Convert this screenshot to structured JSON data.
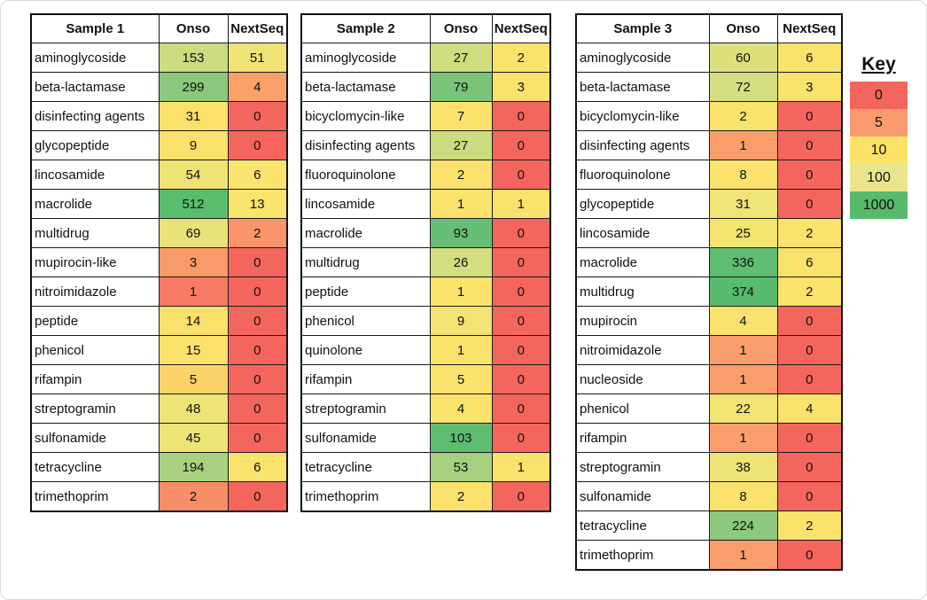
{
  "key": {
    "title": "Key",
    "stops": [
      {
        "label": "0",
        "color": "#F4655D"
      },
      {
        "label": "5",
        "color": "#F99B6C"
      },
      {
        "label": "10",
        "color": "#FBE166"
      },
      {
        "label": "100",
        "color": "#EAE58C"
      },
      {
        "label": "1000",
        "color": "#57BB6B"
      }
    ]
  },
  "chart_data": [
    {
      "type": "heatmap",
      "title": "Sample 1",
      "columns": [
        "Onso",
        "NextSeq"
      ],
      "rows": [
        {
          "label": "aminoglycoside",
          "values": [
            153,
            51
          ],
          "colors": [
            "#CBDB80",
            "#F0E273"
          ]
        },
        {
          "label": "beta-lactamase",
          "values": [
            299,
            4
          ],
          "colors": [
            "#8BC87D",
            "#F9A169"
          ]
        },
        {
          "label": "disinfecting agents",
          "values": [
            31,
            0
          ],
          "colors": [
            "#FBE16B",
            "#F4655D"
          ]
        },
        {
          "label": "glycopeptide",
          "values": [
            9,
            0
          ],
          "colors": [
            "#FBE16B",
            "#F4655D"
          ]
        },
        {
          "label": "lincosamide",
          "values": [
            54,
            6
          ],
          "colors": [
            "#EFE373",
            "#FAE46E"
          ]
        },
        {
          "label": "macrolide",
          "values": [
            512,
            13
          ],
          "colors": [
            "#5ABD6E",
            "#FAE46E"
          ]
        },
        {
          "label": "multidrug",
          "values": [
            69,
            2
          ],
          "colors": [
            "#EAE279",
            "#F9946B"
          ]
        },
        {
          "label": "mupirocin-like",
          "values": [
            3,
            0
          ],
          "colors": [
            "#F99B68",
            "#F4655D"
          ]
        },
        {
          "label": "nitroimidazole",
          "values": [
            1,
            0
          ],
          "colors": [
            "#F77A66",
            "#F4655D"
          ]
        },
        {
          "label": "peptide",
          "values": [
            14,
            0
          ],
          "colors": [
            "#FBE16B",
            "#F4655D"
          ]
        },
        {
          "label": "phenicol",
          "values": [
            15,
            0
          ],
          "colors": [
            "#FBE16B",
            "#F4655D"
          ]
        },
        {
          "label": "rifampin",
          "values": [
            5,
            0
          ],
          "colors": [
            "#FBD469",
            "#F4655D"
          ]
        },
        {
          "label": "streptogramin",
          "values": [
            48,
            0
          ],
          "colors": [
            "#EDE377",
            "#F4655D"
          ]
        },
        {
          "label": "sulfonamide",
          "values": [
            45,
            0
          ],
          "colors": [
            "#EDE377",
            "#F4655D"
          ]
        },
        {
          "label": "tetracycline",
          "values": [
            194,
            6
          ],
          "colors": [
            "#A8D17F",
            "#FAE46E"
          ]
        },
        {
          "label": "trimethoprim",
          "values": [
            2,
            0
          ],
          "colors": [
            "#F88E68",
            "#F4655D"
          ]
        }
      ]
    },
    {
      "type": "heatmap",
      "title": "Sample 2",
      "columns": [
        "Onso",
        "NextSeq"
      ],
      "rows": [
        {
          "label": "aminoglycoside",
          "values": [
            27,
            2
          ],
          "colors": [
            "#D0DD7F",
            "#FAE26C"
          ]
        },
        {
          "label": "beta-lactamase",
          "values": [
            79,
            3
          ],
          "colors": [
            "#7AC47A",
            "#FAE26C"
          ]
        },
        {
          "label": "bicyclomycin-like",
          "values": [
            7,
            0
          ],
          "colors": [
            "#FAE26C",
            "#F4655D"
          ]
        },
        {
          "label": "disinfecting agents",
          "values": [
            27,
            0
          ],
          "colors": [
            "#CCDC80",
            "#F4655D"
          ]
        },
        {
          "label": "fluoroquinolone",
          "values": [
            2,
            0
          ],
          "colors": [
            "#FAE26C",
            "#F4655D"
          ]
        },
        {
          "label": "lincosamide",
          "values": [
            1,
            1
          ],
          "colors": [
            "#FAE26C",
            "#FAE26C"
          ]
        },
        {
          "label": "macrolide",
          "values": [
            93,
            0
          ],
          "colors": [
            "#66BF74",
            "#F4655D"
          ]
        },
        {
          "label": "multidrug",
          "values": [
            26,
            0
          ],
          "colors": [
            "#D4DE7E",
            "#F4655D"
          ]
        },
        {
          "label": "peptide",
          "values": [
            1,
            0
          ],
          "colors": [
            "#FAE26C",
            "#F4655D"
          ]
        },
        {
          "label": "phenicol",
          "values": [
            9,
            0
          ],
          "colors": [
            "#F2E373",
            "#F4655D"
          ]
        },
        {
          "label": "quinolone",
          "values": [
            1,
            0
          ],
          "colors": [
            "#FAE26C",
            "#F4655D"
          ]
        },
        {
          "label": "rifampin",
          "values": [
            5,
            0
          ],
          "colors": [
            "#FAE26C",
            "#F4655D"
          ]
        },
        {
          "label": "streptogramin",
          "values": [
            4,
            0
          ],
          "colors": [
            "#FAE26C",
            "#F4655D"
          ]
        },
        {
          "label": "sulfonamide",
          "values": [
            103,
            0
          ],
          "colors": [
            "#5FBD72",
            "#F4655D"
          ]
        },
        {
          "label": "tetracycline",
          "values": [
            53,
            1
          ],
          "colors": [
            "#A5D07F",
            "#FAE26C"
          ]
        },
        {
          "label": "trimethoprim",
          "values": [
            2,
            0
          ],
          "colors": [
            "#FAE26C",
            "#F4655D"
          ]
        }
      ]
    },
    {
      "type": "heatmap",
      "title": "Sample 3",
      "columns": [
        "Onso",
        "NextSeq"
      ],
      "rows": [
        {
          "label": "aminoglycoside",
          "values": [
            60,
            6
          ],
          "colors": [
            "#DDE07D",
            "#FAE26C"
          ]
        },
        {
          "label": "beta-lactamase",
          "values": [
            72,
            3
          ],
          "colors": [
            "#D6DF80",
            "#FAE26C"
          ]
        },
        {
          "label": "bicyclomycin-like",
          "values": [
            2,
            0
          ],
          "colors": [
            "#FAE26C",
            "#F4655D"
          ]
        },
        {
          "label": "disinfecting agents",
          "values": [
            1,
            0
          ],
          "colors": [
            "#F99D6C",
            "#F4655D"
          ]
        },
        {
          "label": "fluoroquinolone",
          "values": [
            8,
            0
          ],
          "colors": [
            "#FAE26C",
            "#F4655D"
          ]
        },
        {
          "label": "glycopeptide",
          "values": [
            31,
            0
          ],
          "colors": [
            "#EFE475",
            "#F4655D"
          ]
        },
        {
          "label": "lincosamide",
          "values": [
            25,
            2
          ],
          "colors": [
            "#F3E36F",
            "#FAE26C"
          ]
        },
        {
          "label": "macrolide",
          "values": [
            336,
            6
          ],
          "colors": [
            "#5FBD72",
            "#FAE26C"
          ]
        },
        {
          "label": "multidrug",
          "values": [
            374,
            2
          ],
          "colors": [
            "#58BB6E",
            "#FAE26C"
          ]
        },
        {
          "label": "mupirocin",
          "values": [
            4,
            0
          ],
          "colors": [
            "#FAE26C",
            "#F4655D"
          ]
        },
        {
          "label": "nitroimidazole",
          "values": [
            1,
            0
          ],
          "colors": [
            "#F99D6C",
            "#F4655D"
          ]
        },
        {
          "label": "nucleoside",
          "values": [
            1,
            0
          ],
          "colors": [
            "#F99D6C",
            "#F4655D"
          ]
        },
        {
          "label": "phenicol",
          "values": [
            22,
            4
          ],
          "colors": [
            "#F2E372",
            "#FAE26C"
          ]
        },
        {
          "label": "rifampin",
          "values": [
            1,
            0
          ],
          "colors": [
            "#F99D6C",
            "#F4655D"
          ]
        },
        {
          "label": "streptogramin",
          "values": [
            38,
            0
          ],
          "colors": [
            "#EEE376",
            "#F4655D"
          ]
        },
        {
          "label": "sulfonamide",
          "values": [
            8,
            0
          ],
          "colors": [
            "#FAE26C",
            "#F4655D"
          ]
        },
        {
          "label": "tetracycline",
          "values": [
            224,
            2
          ],
          "colors": [
            "#8DC87E",
            "#FAE26C"
          ]
        },
        {
          "label": "trimethoprim",
          "values": [
            1,
            0
          ],
          "colors": [
            "#F99D6C",
            "#F4655D"
          ]
        }
      ]
    }
  ]
}
